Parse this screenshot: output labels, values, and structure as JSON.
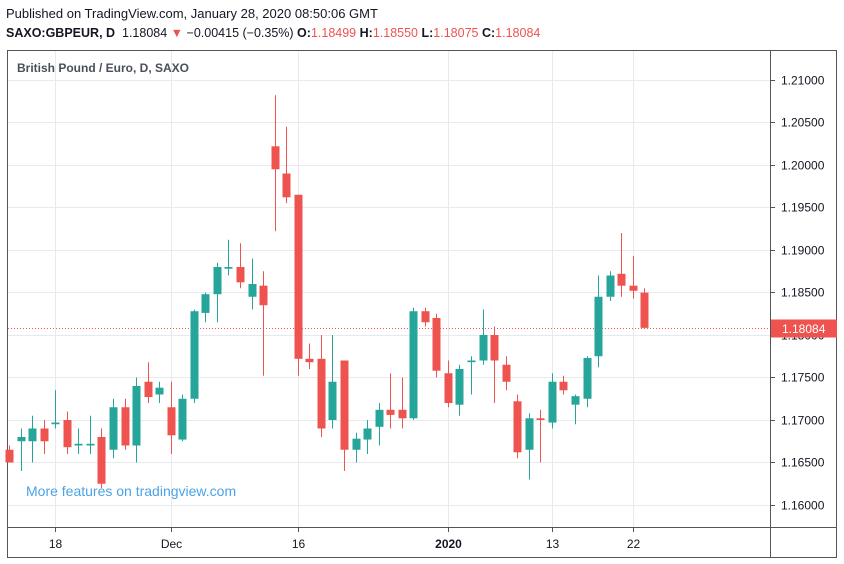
{
  "header": {
    "published": "Published on TradingView.com, January 28, 2020 08:50:06 GMT",
    "symbol": "SAXO:GBPEUR, D",
    "last": "1.18084",
    "change_arrow": "▼",
    "change": "−0.00415 (−0.35%)",
    "open_label": "O:",
    "open": "1.18499",
    "high_label": "H:",
    "high": "1.18550",
    "low_label": "L:",
    "low": "1.18075",
    "close_label": "C:",
    "close": "1.18084"
  },
  "colors": {
    "up": "#26a69a",
    "down": "#ef5350",
    "grid": "#e8eaee",
    "axis": "#555555",
    "price_line": "#ef5350"
  },
  "chart_data": {
    "type": "candlestick",
    "title": "British Pound / Euro, D, SAXO",
    "watermark": "More features on tradingview.com",
    "y_ticks": [
      "1.21000",
      "1.20500",
      "1.20000",
      "1.19500",
      "1.19000",
      "1.18500",
      "1.18000",
      "1.17500",
      "1.17000",
      "1.16500",
      "1.16000"
    ],
    "ylim": [
      1.1585,
      1.2125
    ],
    "x_ticks": [
      {
        "label": "18",
        "index": 4,
        "bold": false
      },
      {
        "label": "Dec",
        "index": 14,
        "bold": false
      },
      {
        "label": "16",
        "index": 25,
        "bold": false
      },
      {
        "label": "2020",
        "index": 38,
        "bold": true
      },
      {
        "label": "13",
        "index": 47,
        "bold": false
      },
      {
        "label": "22",
        "index": 54,
        "bold": false
      }
    ],
    "last_price": 1.18084,
    "last_price_label": "1.18084",
    "candles": [
      {
        "o": 1.1665,
        "h": 1.167,
        "l": 1.165,
        "c": 1.165
      },
      {
        "o": 1.1675,
        "h": 1.169,
        "l": 1.164,
        "c": 1.168
      },
      {
        "o": 1.1675,
        "h": 1.1705,
        "l": 1.165,
        "c": 1.169
      },
      {
        "o": 1.169,
        "h": 1.17,
        "l": 1.166,
        "c": 1.1675
      },
      {
        "o": 1.1695,
        "h": 1.1735,
        "l": 1.169,
        "c": 1.1697
      },
      {
        "o": 1.17,
        "h": 1.171,
        "l": 1.166,
        "c": 1.1668
      },
      {
        "o": 1.167,
        "h": 1.169,
        "l": 1.166,
        "c": 1.1672
      },
      {
        "o": 1.167,
        "h": 1.1705,
        "l": 1.166,
        "c": 1.1672
      },
      {
        "o": 1.168,
        "h": 1.169,
        "l": 1.162,
        "c": 1.1625
      },
      {
        "o": 1.1665,
        "h": 1.1725,
        "l": 1.1655,
        "c": 1.1715
      },
      {
        "o": 1.1715,
        "h": 1.1725,
        "l": 1.1665,
        "c": 1.167
      },
      {
        "o": 1.167,
        "h": 1.175,
        "l": 1.165,
        "c": 1.174
      },
      {
        "o": 1.1745,
        "h": 1.1768,
        "l": 1.172,
        "c": 1.1727
      },
      {
        "o": 1.173,
        "h": 1.1745,
        "l": 1.172,
        "c": 1.1738
      },
      {
        "o": 1.1715,
        "h": 1.1745,
        "l": 1.166,
        "c": 1.1682
      },
      {
        "o": 1.1677,
        "h": 1.173,
        "l": 1.1675,
        "c": 1.1725
      },
      {
        "o": 1.1725,
        "h": 1.183,
        "l": 1.172,
        "c": 1.1828
      },
      {
        "o": 1.1826,
        "h": 1.185,
        "l": 1.1815,
        "c": 1.1848
      },
      {
        "o": 1.1848,
        "h": 1.1885,
        "l": 1.1815,
        "c": 1.188
      },
      {
        "o": 1.1878,
        "h": 1.1912,
        "l": 1.187,
        "c": 1.188
      },
      {
        "o": 1.188,
        "h": 1.1908,
        "l": 1.1855,
        "c": 1.1862
      },
      {
        "o": 1.1845,
        "h": 1.189,
        "l": 1.183,
        "c": 1.186
      },
      {
        "o": 1.1858,
        "h": 1.1875,
        "l": 1.1752,
        "c": 1.1835
      },
      {
        "o": 1.2022,
        "h": 1.2082,
        "l": 1.1922,
        "c": 1.1995
      },
      {
        "o": 1.199,
        "h": 1.2045,
        "l": 1.1955,
        "c": 1.1962
      },
      {
        "o": 1.1965,
        "h": 1.1965,
        "l": 1.1752,
        "c": 1.1772
      },
      {
        "o": 1.1772,
        "h": 1.179,
        "l": 1.176,
        "c": 1.1768
      },
      {
        "o": 1.1772,
        "h": 1.18,
        "l": 1.168,
        "c": 1.169
      },
      {
        "o": 1.17,
        "h": 1.18,
        "l": 1.169,
        "c": 1.1745
      },
      {
        "o": 1.177,
        "h": 1.177,
        "l": 1.164,
        "c": 1.1665
      },
      {
        "o": 1.1665,
        "h": 1.1685,
        "l": 1.165,
        "c": 1.1678
      },
      {
        "o": 1.1677,
        "h": 1.17,
        "l": 1.166,
        "c": 1.169
      },
      {
        "o": 1.1692,
        "h": 1.172,
        "l": 1.167,
        "c": 1.1712
      },
      {
        "o": 1.1712,
        "h": 1.1755,
        "l": 1.169,
        "c": 1.1706
      },
      {
        "o": 1.1712,
        "h": 1.175,
        "l": 1.169,
        "c": 1.1702
      },
      {
        "o": 1.1702,
        "h": 1.1832,
        "l": 1.17,
        "c": 1.1828
      },
      {
        "o": 1.1828,
        "h": 1.1832,
        "l": 1.181,
        "c": 1.1815
      },
      {
        "o": 1.182,
        "h": 1.1825,
        "l": 1.175,
        "c": 1.1758
      },
      {
        "o": 1.1755,
        "h": 1.177,
        "l": 1.1715,
        "c": 1.172
      },
      {
        "o": 1.1718,
        "h": 1.1765,
        "l": 1.1705,
        "c": 1.176
      },
      {
        "o": 1.1768,
        "h": 1.1775,
        "l": 1.173,
        "c": 1.177
      },
      {
        "o": 1.177,
        "h": 1.183,
        "l": 1.1765,
        "c": 1.18
      },
      {
        "o": 1.18,
        "h": 1.181,
        "l": 1.172,
        "c": 1.177
      },
      {
        "o": 1.1765,
        "h": 1.1775,
        "l": 1.1735,
        "c": 1.1745
      },
      {
        "o": 1.1722,
        "h": 1.173,
        "l": 1.1655,
        "c": 1.1662
      },
      {
        "o": 1.1665,
        "h": 1.1708,
        "l": 1.163,
        "c": 1.1702
      },
      {
        "o": 1.1702,
        "h": 1.1712,
        "l": 1.165,
        "c": 1.17
      },
      {
        "o": 1.1697,
        "h": 1.1755,
        "l": 1.169,
        "c": 1.1745
      },
      {
        "o": 1.1745,
        "h": 1.1752,
        "l": 1.173,
        "c": 1.1735
      },
      {
        "o": 1.1718,
        "h": 1.173,
        "l": 1.1695,
        "c": 1.1728
      },
      {
        "o": 1.1725,
        "h": 1.1775,
        "l": 1.1715,
        "c": 1.1773
      },
      {
        "o": 1.1775,
        "h": 1.187,
        "l": 1.1762,
        "c": 1.1845
      },
      {
        "o": 1.1845,
        "h": 1.1875,
        "l": 1.184,
        "c": 1.187
      },
      {
        "o": 1.1872,
        "h": 1.192,
        "l": 1.1845,
        "c": 1.1858
      },
      {
        "o": 1.1858,
        "h": 1.1893,
        "l": 1.1843,
        "c": 1.1852
      },
      {
        "o": 1.18499,
        "h": 1.1855,
        "l": 1.18075,
        "c": 1.18084
      }
    ]
  }
}
